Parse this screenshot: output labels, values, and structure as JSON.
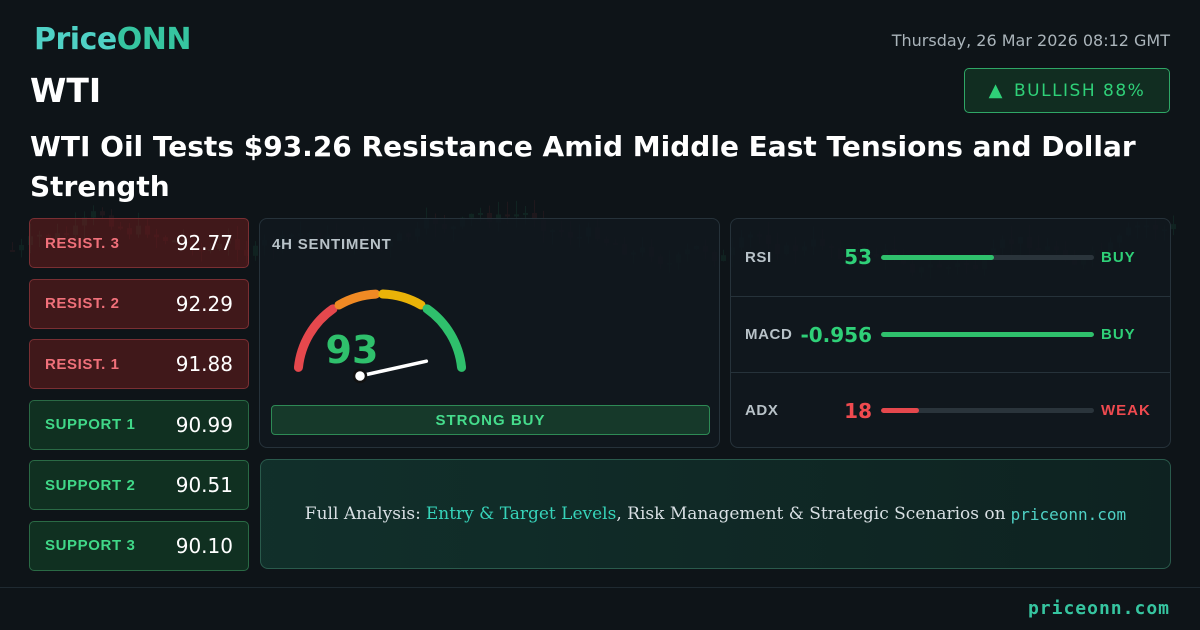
{
  "brand": {
    "name_part1": "Price",
    "name_part2": "ONN"
  },
  "datetime": "Thursday, 26 Mar 2026 08:12 GMT",
  "symbol": "WTI",
  "badge": {
    "label": "BULLISH 88%",
    "direction": "up",
    "icon": "triangle-up-icon",
    "color": "#2fd078"
  },
  "headline": "WTI Oil Tests $93.26 Resistance Amid Middle East Tensions and Dollar Strength",
  "levels": [
    {
      "label": "RESIST. 3",
      "value": "92.77",
      "type": "resistance"
    },
    {
      "label": "RESIST. 2",
      "value": "92.29",
      "type": "resistance"
    },
    {
      "label": "RESIST. 1",
      "value": "91.88",
      "type": "resistance"
    },
    {
      "label": "SUPPORT 1",
      "value": "90.99",
      "type": "support"
    },
    {
      "label": "SUPPORT 2",
      "value": "90.51",
      "type": "support"
    },
    {
      "label": "SUPPORT 3",
      "value": "90.10",
      "type": "support"
    }
  ],
  "sentiment": {
    "title": "4H SENTIMENT",
    "score": "93",
    "score_max": 100,
    "signal": "STRONG BUY",
    "gauge_colors": [
      "#e5484d",
      "#f08a24",
      "#eab308",
      "#2fc06c"
    ]
  },
  "indicators": [
    {
      "name": "RSI",
      "value": "53",
      "signal": "BUY",
      "level": 0.53,
      "tone": "green"
    },
    {
      "name": "MACD",
      "value": "-0.956",
      "signal": "BUY",
      "level": 1.0,
      "tone": "green"
    },
    {
      "name": "ADX",
      "value": "18",
      "signal": "WEAK",
      "level": 0.18,
      "tone": "red"
    }
  ],
  "cta": {
    "prefix": "Full Analysis:",
    "highlight": "Entry & Target Levels",
    "middle": ", Risk Management & Strategic Scenarios on",
    "site": "priceonn.com"
  },
  "footer_url": "priceonn.com",
  "colors": {
    "accent": "#36c5a0",
    "bull": "#2fd078",
    "bear": "#ef4a4f",
    "background": "#0e1418"
  }
}
